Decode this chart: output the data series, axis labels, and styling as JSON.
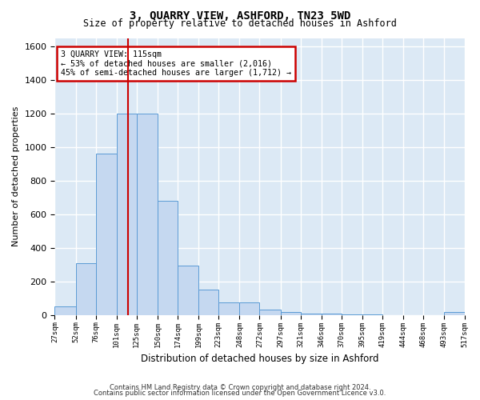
{
  "title": "3, QUARRY VIEW, ASHFORD, TN23 5WD",
  "subtitle": "Size of property relative to detached houses in Ashford",
  "xlabel": "Distribution of detached houses by size in Ashford",
  "ylabel": "Number of detached properties",
  "bar_color": "#c5d8f0",
  "bar_edge_color": "#5b9bd5",
  "background_color": "#dce9f5",
  "grid_color": "#ffffff",
  "vline_x": 115,
  "vline_color": "#cc0000",
  "annotation_text": "3 QUARRY VIEW: 115sqm\n← 53% of detached houses are smaller (2,016)\n45% of semi-detached houses are larger (1,712) →",
  "annotation_box_color": "#cc0000",
  "ylim": [
    0,
    1650
  ],
  "bins": [
    27,
    52,
    76,
    101,
    125,
    150,
    174,
    199,
    223,
    248,
    272,
    297,
    321,
    346,
    370,
    395,
    419,
    444,
    468,
    493,
    517
  ],
  "values": [
    50,
    310,
    960,
    1200,
    1200,
    680,
    295,
    150,
    75,
    75,
    30,
    20,
    10,
    10,
    5,
    5,
    0,
    0,
    0,
    20
  ],
  "tick_labels": [
    "27sqm",
    "52sqm",
    "76sqm",
    "101sqm",
    "125sqm",
    "150sqm",
    "174sqm",
    "199sqm",
    "223sqm",
    "248sqm",
    "272sqm",
    "297sqm",
    "321sqm",
    "346sqm",
    "370sqm",
    "395sqm",
    "419sqm",
    "444sqm",
    "468sqm",
    "493sqm",
    "517sqm"
  ],
  "footer1": "Contains HM Land Registry data © Crown copyright and database right 2024.",
  "footer2": "Contains public sector information licensed under the Open Government Licence v3.0."
}
